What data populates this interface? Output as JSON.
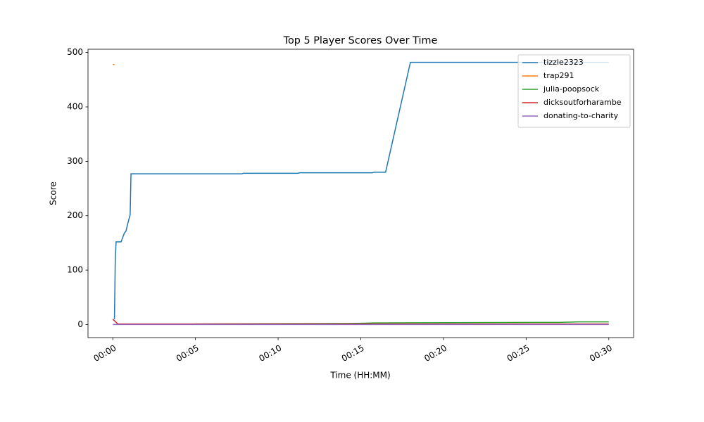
{
  "chart_data": {
    "type": "line",
    "title": "Top 5 Player Scores Over Time",
    "x_label": "Time (HH:MM)",
    "y_label": "Score",
    "xlim": [
      -1.5,
      31.5
    ],
    "ylim": [
      -24,
      506
    ],
    "xticks": [
      {
        "value": 0,
        "label": "00:00"
      },
      {
        "value": 5,
        "label": "00:05"
      },
      {
        "value": 10,
        "label": "00:10"
      },
      {
        "value": 15,
        "label": "00:15"
      },
      {
        "value": 20,
        "label": "00:20"
      },
      {
        "value": 25,
        "label": "00:25"
      },
      {
        "value": 30,
        "label": "00:30"
      }
    ],
    "yticks": [
      0,
      100,
      200,
      300,
      400,
      500
    ],
    "legend": "upper right",
    "series": [
      {
        "name": "tizzle2323",
        "color": "#1f77b4",
        "x": [
          0.1,
          0.15,
          0.2,
          0.5,
          0.7,
          0.8,
          0.9,
          1.05,
          1.1,
          7.8,
          7.9,
          11.2,
          11.3,
          15.7,
          15.8,
          16.5,
          18.0,
          30
        ],
        "values": [
          10,
          120,
          152,
          152,
          168,
          172,
          185,
          202,
          277,
          277,
          278,
          278,
          279,
          279,
          280,
          280,
          482,
          482
        ]
      },
      {
        "name": "trap291",
        "color": "#ff7f0e",
        "x": [
          0,
          0.1
        ],
        "values": [
          478,
          478
        ]
      },
      {
        "name": "julia-poopsock",
        "color": "#2ca02c",
        "x": [
          5,
          14.5,
          15.8,
          27,
          28.2,
          30
        ],
        "values": [
          1,
          2,
          3,
          4,
          5,
          5
        ]
      },
      {
        "name": "dicksoutforharambe",
        "color": "#d62728",
        "x": [
          0,
          0.3,
          30
        ],
        "values": [
          10,
          1,
          1
        ]
      },
      {
        "name": "donating-to-charity",
        "color": "#9467bd",
        "x": [
          0,
          30
        ],
        "values": [
          0,
          0
        ]
      }
    ]
  }
}
